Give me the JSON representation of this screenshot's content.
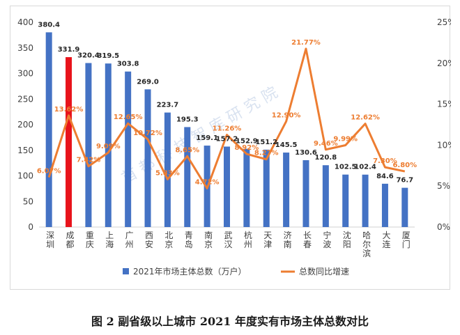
{
  "caption": "图 2  副省级以上城市 2021 年度实有市场主体总数对比",
  "watermark": "首 都 科 技 智 库 研 究 院",
  "colors": {
    "bar": "#4472c4",
    "bar_highlight": "#e8131b",
    "line": "#ed7d31",
    "pct_label": "#ed7d31",
    "axis_text": "#404040",
    "watermark": "#c9d7ea"
  },
  "chart_data": {
    "type": "bar",
    "categories": [
      "深圳",
      "成都",
      "重庆",
      "上海",
      "广州",
      "西安",
      "北京",
      "青岛",
      "南京",
      "武汉",
      "杭州",
      "天津",
      "济南",
      "长春",
      "宁波",
      "沈阳",
      "哈尔滨",
      "大连",
      "厦门"
    ],
    "highlight_index": 1,
    "series": [
      {
        "name": "2021年市场主体总数（万户）",
        "type": "bar",
        "axis": "left",
        "values": [
          380.4,
          331.9,
          320.4,
          319.5,
          303.8,
          269.0,
          223.7,
          195.3,
          159.1,
          157.2,
          152.9,
          151.2,
          145.5,
          130.6,
          120.8,
          102.5,
          102.4,
          84.6,
          76.7
        ],
        "labels": [
          "380.4",
          "331.9",
          "320.4",
          "319.5",
          "303.8",
          "269.0",
          "223.7",
          "195.3",
          "159.1",
          "157.2",
          "152.9",
          "151.2",
          "145.5",
          "130.6",
          "120.8",
          "102.5",
          "102.4",
          "84.6",
          "76.7"
        ]
      },
      {
        "name": "总数同比增速",
        "type": "line",
        "axis": "right",
        "values": [
          6.07,
          13.62,
          7.42,
          9.09,
          12.65,
          10.72,
          5.83,
          8.65,
          4.72,
          11.26,
          8.92,
          8.27,
          12.9,
          21.77,
          9.46,
          9.99,
          12.62,
          7.3,
          6.8
        ],
        "labels": [
          "6.07%",
          "13.62%",
          "7.42%",
          "9.09%",
          "12.65%",
          "10.72%",
          "5.83%",
          "8.65%",
          "4.72%",
          "11.26%",
          "8.92%",
          "8.27%",
          "12.90%",
          "21.77%",
          "9.46%",
          "9.99%",
          "12.62%",
          "7.30%",
          "6.80%"
        ]
      }
    ],
    "y_left": {
      "min": 0,
      "max": 400,
      "ticks": [
        "0",
        "50",
        "100",
        "150",
        "200",
        "250",
        "300",
        "350",
        "400"
      ]
    },
    "y_right": {
      "min": 0,
      "max": 25,
      "ticks": [
        "0%",
        "5%",
        "10%",
        "15%",
        "20%",
        "25%"
      ]
    },
    "grid": false,
    "legend_position": "bottom"
  }
}
